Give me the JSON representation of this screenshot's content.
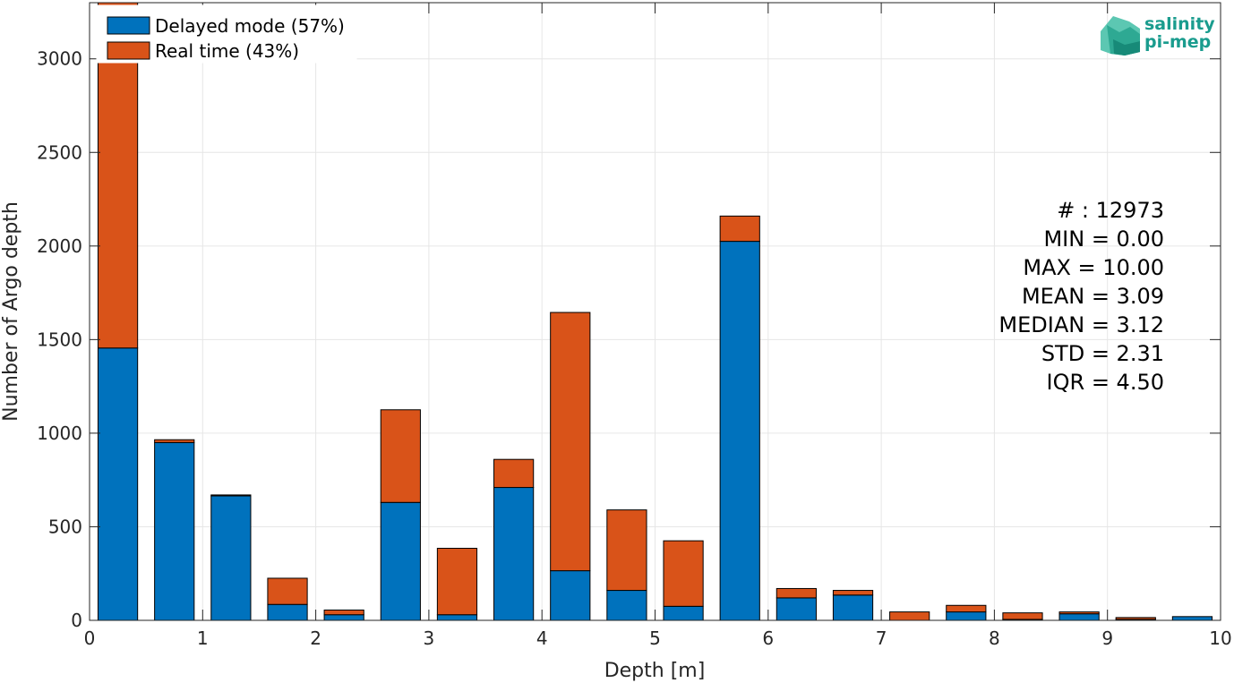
{
  "chart_data": {
    "type": "bar",
    "stacked": true,
    "xlabel": "Depth [m]",
    "ylabel": "Number of Argo depth",
    "xlim": [
      0,
      10
    ],
    "ylim": [
      0,
      3300
    ],
    "xticks": [
      0,
      1,
      2,
      3,
      4,
      5,
      6,
      7,
      8,
      9,
      10
    ],
    "yticks": [
      0,
      500,
      1000,
      1500,
      2000,
      2500,
      3000
    ],
    "grid": true,
    "legend_position": "top-left",
    "bin_centers": [
      0.25,
      0.75,
      1.25,
      1.75,
      2.25,
      2.75,
      3.25,
      3.75,
      4.25,
      4.75,
      5.25,
      5.75,
      6.25,
      6.75,
      7.25,
      7.75,
      8.25,
      8.75,
      9.25,
      9.75
    ],
    "bin_width": 0.35,
    "series": [
      {
        "name": "Delayed mode (57%)",
        "color": "#0072BD",
        "values": [
          1455,
          950,
          665,
          85,
          30,
          630,
          30,
          710,
          265,
          160,
          75,
          2025,
          120,
          135,
          0,
          45,
          5,
          35,
          5,
          20
        ]
      },
      {
        "name": "Real time (43%)",
        "color": "#D95319",
        "values": [
          1845,
          15,
          5,
          140,
          25,
          495,
          355,
          150,
          1380,
          430,
          350,
          135,
          50,
          25,
          45,
          35,
          35,
          10,
          10,
          0
        ]
      }
    ],
    "stats": [
      "# : 12973",
      "MIN = 0.00",
      "MAX =  10.00",
      "MEAN = 3.09",
      "MEDIAN = 3.12",
      "STD = 2.31",
      "IQR = 4.50"
    ]
  },
  "logo": {
    "line1": "salinity",
    "line2": "pi-mep"
  }
}
